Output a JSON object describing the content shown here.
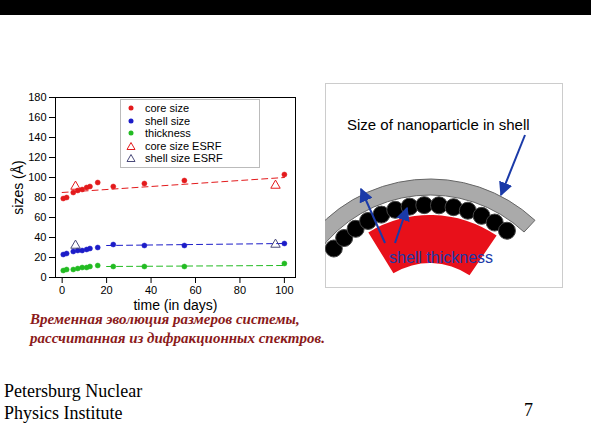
{
  "chart_data": {
    "type": "scatter",
    "xlabel": "time (in days)",
    "ylabel": "sizes (Å)",
    "xlim": [
      -3,
      105
    ],
    "xticks": [
      0,
      20,
      40,
      60,
      80,
      100
    ],
    "ylim": [
      0,
      180
    ],
    "yticks": [
      0,
      20,
      40,
      60,
      80,
      100,
      120,
      140,
      160,
      180
    ],
    "legend": "top",
    "grid": false,
    "series": [
      {
        "name": "core size",
        "color": "#e31a1c",
        "marker": "dot",
        "x": [
          0.5,
          2,
          5,
          7,
          9,
          11,
          12.5,
          16,
          23,
          37,
          55,
          100
        ],
        "values": [
          79,
          80,
          85,
          87,
          88,
          90,
          91,
          95,
          91,
          94,
          97,
          103
        ],
        "trend": {
          "x": [
            0,
            100
          ],
          "values": [
            85,
            100
          ],
          "line_style": "dashed"
        }
      },
      {
        "name": "shell size",
        "color": "#1c1cc8",
        "marker": "dot",
        "x": [
          0.5,
          2,
          5,
          7,
          9,
          11,
          12.5,
          16,
          23,
          37,
          55,
          100
        ],
        "values": [
          23,
          24,
          26,
          27,
          27,
          28,
          29,
          30,
          33,
          32,
          32,
          34
        ],
        "trend": {
          "x": [
            20,
            100
          ],
          "values": [
            32,
            34
          ],
          "line_style": "dashed"
        }
      },
      {
        "name": "thickness",
        "color": "#22bb22",
        "marker": "dot",
        "x": [
          0.5,
          2,
          5,
          7,
          9,
          11,
          12.5,
          16,
          23,
          37,
          55,
          100
        ],
        "values": [
          7,
          8,
          8,
          9,
          10,
          10,
          11,
          12,
          11,
          11,
          11,
          14
        ],
        "trend": {
          "x": [
            20,
            100
          ],
          "values": [
            11,
            12
          ],
          "line_style": "dashed"
        }
      },
      {
        "name": "core size ESRF",
        "color": "#e31a1c",
        "marker": "open_triangle",
        "x": [
          6,
          96
        ],
        "values": [
          91,
          92
        ]
      },
      {
        "name": "shell size ESRF",
        "color": "#4a4a7a",
        "marker": "open_triangle",
        "x": [
          6,
          96
        ],
        "values": [
          32,
          33
        ]
      }
    ]
  },
  "diagram": {
    "title": "Size of nanoparticle in shell",
    "label": "shell thickness"
  },
  "caption": [
    "Временная эволюция размеров системы,",
    "рассчитанная из дифракционных спектров."
  ],
  "footer": [
    "Petersburg Nuclear",
    "Physics Institute"
  ],
  "page_number": 7
}
